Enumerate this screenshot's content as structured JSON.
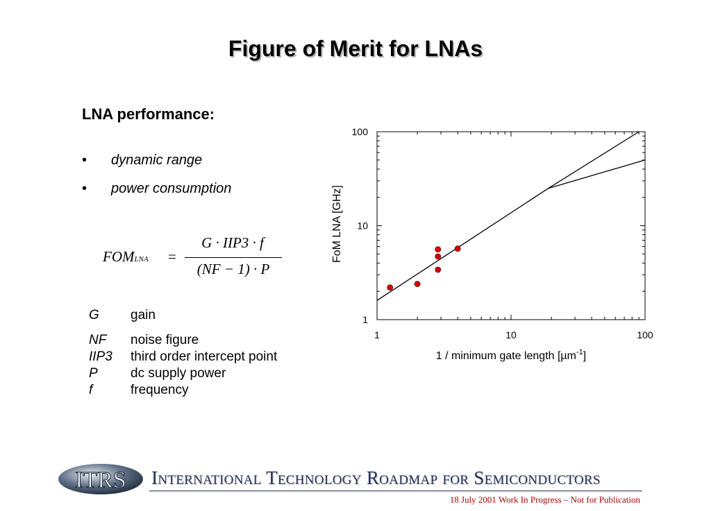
{
  "title": "Figure of Merit for LNAs",
  "subheading": "LNA performance:",
  "bullets": [
    "dynamic range",
    "power consumption"
  ],
  "formula": {
    "lhs": "FOM",
    "lhs_sub": "LNA",
    "equals": "=",
    "numerator": "G · IIP3 · f",
    "denominator": "(NF − 1) · P"
  },
  "definitions": [
    {
      "symbol": "G",
      "meaning": "gain"
    },
    {
      "symbol": "NF",
      "meaning": "noise figure"
    },
    {
      "symbol": "IIP3",
      "meaning": "third order intercept point"
    },
    {
      "symbol": "P",
      "meaning": "dc supply power"
    },
    {
      "symbol": "f",
      "meaning": "frequency"
    }
  ],
  "chart_data": {
    "type": "scatter",
    "xlabel": "1 / minimum gate length [µm",
    "xlabel_superscript": "-1",
    "xlabel_suffix": "]",
    "ylabel": "FoM LNA [GHz]",
    "xscale": "log",
    "yscale": "log",
    "xlim": [
      1,
      100
    ],
    "ylim": [
      1,
      100
    ],
    "xticks": [
      "1",
      "10",
      "100"
    ],
    "yticks": [
      "1",
      "10",
      "100"
    ],
    "grid": false,
    "points": [
      {
        "x": 1.25,
        "y": 2.2
      },
      {
        "x": 2.0,
        "y": 2.4
      },
      {
        "x": 2.85,
        "y": 3.4
      },
      {
        "x": 2.85,
        "y": 4.7
      },
      {
        "x": 2.85,
        "y": 5.6
      },
      {
        "x": 4.0,
        "y": 5.7
      }
    ],
    "lines": [
      {
        "points": [
          [
            1,
            1.6
          ],
          [
            19,
            25
          ],
          [
            90,
            100
          ]
        ]
      },
      {
        "points": [
          [
            19,
            25
          ],
          [
            100,
            50
          ]
        ]
      }
    ],
    "point_color": "#d40000"
  },
  "footer": {
    "logo_text": "ITRS",
    "org_name": "International Technology Roadmap for Semiconductors",
    "note": "18 July 2001 Work In Progress – Not for Publication"
  }
}
